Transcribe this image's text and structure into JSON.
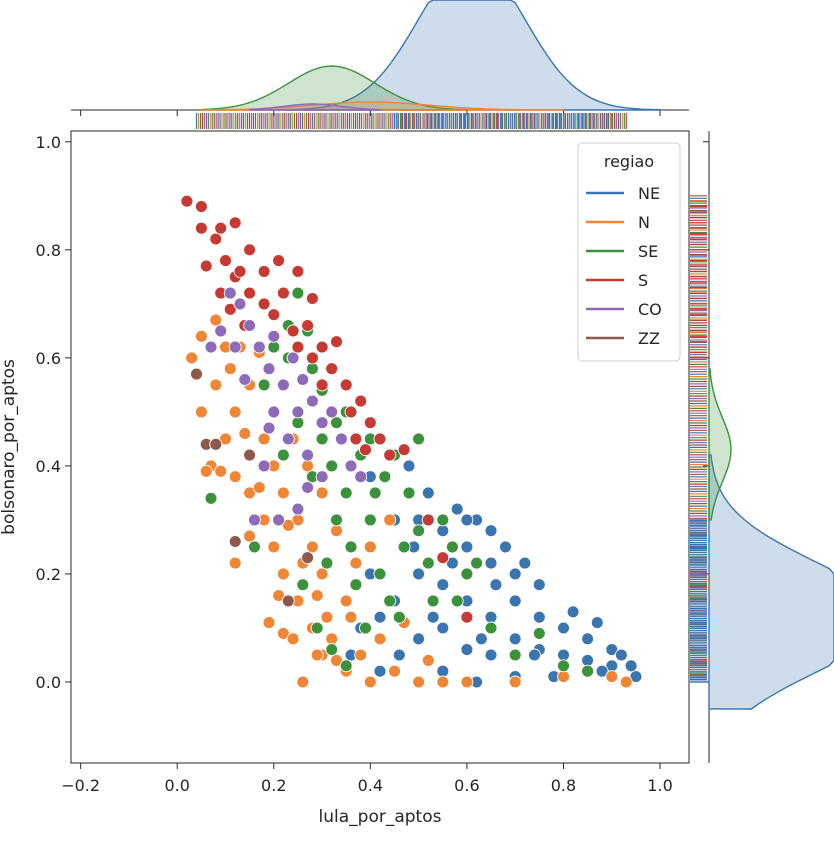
{
  "chart_data": {
    "type": "scatter",
    "xlabel": "lula_por_aptos",
    "ylabel": "bolsonaro_por_aptos",
    "xlim": [
      -0.22,
      1.06
    ],
    "ylim": [
      -0.15,
      1.02
    ],
    "xticks": [
      -0.2,
      0.0,
      0.2,
      0.4,
      0.6,
      0.8,
      1.0
    ],
    "xtick_labels": [
      "−0.2",
      "0.0",
      "0.2",
      "0.4",
      "0.6",
      "0.8",
      "1.0"
    ],
    "yticks": [
      0.0,
      0.2,
      0.4,
      0.6,
      0.8,
      1.0
    ],
    "ytick_labels": [
      "0.0",
      "0.2",
      "0.4",
      "0.6",
      "0.8",
      "1.0"
    ],
    "grid": false,
    "legend": {
      "title": "regiao",
      "position": "top-right"
    },
    "marginals": {
      "top": "kde + rug of x",
      "right": "kde + rug of y"
    },
    "series": [
      {
        "name": "NE",
        "color": "#3b75af",
        "points": [
          [
            0.5,
            0.08
          ],
          [
            0.55,
            0.1
          ],
          [
            0.6,
            0.06
          ],
          [
            0.65,
            0.05
          ],
          [
            0.7,
            0.08
          ],
          [
            0.75,
            0.06
          ],
          [
            0.8,
            0.05
          ],
          [
            0.85,
            0.04
          ],
          [
            0.9,
            0.03
          ],
          [
            0.95,
            0.01
          ],
          [
            0.45,
            0.15
          ],
          [
            0.5,
            0.2
          ],
          [
            0.55,
            0.18
          ],
          [
            0.6,
            0.15
          ],
          [
            0.65,
            0.12
          ],
          [
            0.7,
            0.15
          ],
          [
            0.75,
            0.12
          ],
          [
            0.8,
            0.1
          ],
          [
            0.85,
            0.08
          ],
          [
            0.9,
            0.06
          ],
          [
            0.45,
            0.3
          ],
          [
            0.5,
            0.3
          ],
          [
            0.55,
            0.28
          ],
          [
            0.6,
            0.25
          ],
          [
            0.65,
            0.22
          ],
          [
            0.7,
            0.2
          ],
          [
            0.75,
            0.18
          ],
          [
            0.48,
            0.4
          ],
          [
            0.52,
            0.35
          ],
          [
            0.58,
            0.32
          ],
          [
            0.62,
            0.3
          ],
          [
            0.68,
            0.25
          ],
          [
            0.72,
            0.22
          ],
          [
            0.4,
            0.38
          ],
          [
            0.42,
            0.02
          ],
          [
            0.5,
            0.0
          ],
          [
            0.55,
            0.02
          ],
          [
            0.62,
            0.0
          ],
          [
            0.7,
            0.01
          ],
          [
            0.78,
            0.01
          ],
          [
            0.88,
            0.02
          ],
          [
            0.92,
            0.05
          ],
          [
            0.6,
            0.3
          ],
          [
            0.65,
            0.28
          ],
          [
            0.38,
            0.1
          ],
          [
            0.42,
            0.12
          ],
          [
            0.46,
            0.05
          ],
          [
            0.66,
            0.18
          ],
          [
            0.74,
            0.05
          ],
          [
            0.82,
            0.13
          ],
          [
            0.57,
            0.22
          ],
          [
            0.49,
            0.25
          ],
          [
            0.53,
            0.12
          ],
          [
            0.63,
            0.08
          ],
          [
            0.87,
            0.11
          ],
          [
            0.94,
            0.03
          ],
          [
            0.4,
            0.2
          ],
          [
            0.36,
            0.05
          ]
        ]
      },
      {
        "name": "N",
        "color": "#ef8636",
        "points": [
          [
            0.03,
            0.6
          ],
          [
            0.05,
            0.5
          ],
          [
            0.07,
            0.4
          ],
          [
            0.08,
            0.55
          ],
          [
            0.1,
            0.45
          ],
          [
            0.1,
            0.62
          ],
          [
            0.12,
            0.38
          ],
          [
            0.12,
            0.5
          ],
          [
            0.15,
            0.35
          ],
          [
            0.15,
            0.55
          ],
          [
            0.18,
            0.3
          ],
          [
            0.18,
            0.45
          ],
          [
            0.2,
            0.25
          ],
          [
            0.2,
            0.4
          ],
          [
            0.22,
            0.2
          ],
          [
            0.22,
            0.35
          ],
          [
            0.25,
            0.15
          ],
          [
            0.25,
            0.3
          ],
          [
            0.28,
            0.1
          ],
          [
            0.28,
            0.25
          ],
          [
            0.3,
            0.05
          ],
          [
            0.3,
            0.2
          ],
          [
            0.32,
            0.08
          ],
          [
            0.35,
            0.15
          ],
          [
            0.35,
            0.02
          ],
          [
            0.38,
            0.05
          ],
          [
            0.4,
            0.0
          ],
          [
            0.42,
            0.08
          ],
          [
            0.45,
            0.02
          ],
          [
            0.5,
            0.0
          ],
          [
            0.55,
            0.0
          ],
          [
            0.6,
            0.0
          ],
          [
            0.7,
            0.0
          ],
          [
            0.8,
            0.01
          ],
          [
            0.9,
            0.01
          ],
          [
            0.93,
            0.0
          ],
          [
            0.06,
            0.39
          ],
          [
            0.09,
            0.39
          ],
          [
            0.12,
            0.22
          ],
          [
            0.15,
            0.27
          ],
          [
            0.19,
            0.11
          ],
          [
            0.22,
            0.09
          ],
          [
            0.26,
            0.0
          ],
          [
            0.24,
            0.08
          ],
          [
            0.21,
            0.16
          ],
          [
            0.13,
            0.62
          ],
          [
            0.17,
            0.61
          ],
          [
            0.3,
            0.35
          ],
          [
            0.27,
            0.4
          ],
          [
            0.24,
            0.45
          ],
          [
            0.33,
            0.28
          ],
          [
            0.37,
            0.22
          ],
          [
            0.4,
            0.25
          ],
          [
            0.44,
            0.3
          ],
          [
            0.36,
            0.12
          ],
          [
            0.31,
            0.12
          ],
          [
            0.29,
            0.16
          ],
          [
            0.05,
            0.64
          ],
          [
            0.08,
            0.67
          ],
          [
            0.11,
            0.58
          ],
          [
            0.14,
            0.46
          ],
          [
            0.17,
            0.36
          ],
          [
            0.2,
            0.5
          ],
          [
            0.23,
            0.29
          ],
          [
            0.26,
            0.22
          ],
          [
            0.29,
            0.05
          ],
          [
            0.33,
            0.04
          ],
          [
            0.47,
            0.11
          ],
          [
            0.52,
            0.04
          ]
        ]
      },
      {
        "name": "SE",
        "color": "#3b923b",
        "points": [
          [
            0.07,
            0.34
          ],
          [
            0.16,
            0.25
          ],
          [
            0.22,
            0.42
          ],
          [
            0.25,
            0.48
          ],
          [
            0.28,
            0.38
          ],
          [
            0.3,
            0.45
          ],
          [
            0.32,
            0.4
          ],
          [
            0.33,
            0.3
          ],
          [
            0.35,
            0.35
          ],
          [
            0.36,
            0.25
          ],
          [
            0.38,
            0.42
          ],
          [
            0.4,
            0.3
          ],
          [
            0.4,
            0.45
          ],
          [
            0.42,
            0.2
          ],
          [
            0.45,
            0.42
          ],
          [
            0.46,
            0.12
          ],
          [
            0.48,
            0.35
          ],
          [
            0.5,
            0.28
          ],
          [
            0.52,
            0.22
          ],
          [
            0.55,
            0.3
          ],
          [
            0.58,
            0.15
          ],
          [
            0.62,
            0.22
          ],
          [
            0.65,
            0.1
          ],
          [
            0.7,
            0.05
          ],
          [
            0.75,
            0.09
          ],
          [
            0.8,
            0.03
          ],
          [
            0.85,
            0.02
          ],
          [
            0.28,
            0.58
          ],
          [
            0.3,
            0.54
          ],
          [
            0.27,
            0.65
          ],
          [
            0.35,
            0.5
          ],
          [
            0.23,
            0.6
          ],
          [
            0.2,
            0.62
          ],
          [
            0.18,
            0.55
          ],
          [
            0.26,
            0.18
          ],
          [
            0.29,
            0.1
          ],
          [
            0.32,
            0.06
          ],
          [
            0.35,
            0.03
          ],
          [
            0.23,
            0.66
          ],
          [
            0.37,
            0.18
          ],
          [
            0.47,
            0.25
          ],
          [
            0.5,
            0.45
          ],
          [
            0.53,
            0.15
          ],
          [
            0.43,
            0.38
          ],
          [
            0.25,
            0.72
          ],
          [
            0.31,
            0.22
          ],
          [
            0.33,
            0.48
          ],
          [
            0.39,
            0.1
          ],
          [
            0.44,
            0.15
          ],
          [
            0.41,
            0.35
          ],
          [
            0.57,
            0.25
          ],
          [
            0.6,
            0.2
          ]
        ]
      },
      {
        "name": "S",
        "color": "#c53a32",
        "points": [
          [
            0.02,
            0.89
          ],
          [
            0.05,
            0.88
          ],
          [
            0.08,
            0.82
          ],
          [
            0.1,
            0.78
          ],
          [
            0.12,
            0.85
          ],
          [
            0.12,
            0.75
          ],
          [
            0.15,
            0.72
          ],
          [
            0.15,
            0.8
          ],
          [
            0.18,
            0.7
          ],
          [
            0.18,
            0.76
          ],
          [
            0.2,
            0.68
          ],
          [
            0.22,
            0.72
          ],
          [
            0.24,
            0.65
          ],
          [
            0.25,
            0.62
          ],
          [
            0.27,
            0.66
          ],
          [
            0.28,
            0.6
          ],
          [
            0.3,
            0.62
          ],
          [
            0.32,
            0.58
          ],
          [
            0.35,
            0.55
          ],
          [
            0.36,
            0.5
          ],
          [
            0.38,
            0.52
          ],
          [
            0.4,
            0.48
          ],
          [
            0.42,
            0.45
          ],
          [
            0.44,
            0.42
          ],
          [
            0.47,
            0.43
          ],
          [
            0.05,
            0.84
          ],
          [
            0.06,
            0.77
          ],
          [
            0.09,
            0.72
          ],
          [
            0.11,
            0.69
          ],
          [
            0.14,
            0.66
          ],
          [
            0.17,
            0.62
          ],
          [
            0.21,
            0.78
          ],
          [
            0.25,
            0.76
          ],
          [
            0.28,
            0.71
          ],
          [
            0.26,
            0.56
          ],
          [
            0.33,
            0.63
          ],
          [
            0.3,
            0.55
          ],
          [
            0.37,
            0.45
          ],
          [
            0.39,
            0.43
          ],
          [
            0.52,
            0.3
          ],
          [
            0.55,
            0.23
          ],
          [
            0.6,
            0.12
          ],
          [
            0.09,
            0.84
          ],
          [
            0.13,
            0.76
          ]
        ]
      },
      {
        "name": "CO",
        "color": "#8d6bb8",
        "points": [
          [
            0.09,
            0.65
          ],
          [
            0.12,
            0.62
          ],
          [
            0.13,
            0.7
          ],
          [
            0.15,
            0.66
          ],
          [
            0.17,
            0.62
          ],
          [
            0.19,
            0.58
          ],
          [
            0.2,
            0.64
          ],
          [
            0.22,
            0.55
          ],
          [
            0.24,
            0.6
          ],
          [
            0.25,
            0.5
          ],
          [
            0.26,
            0.56
          ],
          [
            0.28,
            0.52
          ],
          [
            0.3,
            0.48
          ],
          [
            0.32,
            0.5
          ],
          [
            0.34,
            0.45
          ],
          [
            0.36,
            0.4
          ],
          [
            0.38,
            0.38
          ],
          [
            0.2,
            0.5
          ],
          [
            0.23,
            0.45
          ],
          [
            0.27,
            0.42
          ],
          [
            0.3,
            0.38
          ],
          [
            0.18,
            0.4
          ],
          [
            0.16,
            0.3
          ],
          [
            0.21,
            0.3
          ],
          [
            0.25,
            0.32
          ],
          [
            0.07,
            0.62
          ],
          [
            0.11,
            0.72
          ],
          [
            0.14,
            0.56
          ],
          [
            0.19,
            0.47
          ],
          [
            0.27,
            0.36
          ]
        ]
      },
      {
        "name": "ZZ",
        "color": "#8b5a4c",
        "points": [
          [
            0.04,
            0.57
          ],
          [
            0.06,
            0.44
          ],
          [
            0.12,
            0.26
          ],
          [
            0.27,
            0.23
          ],
          [
            0.23,
            0.15
          ],
          [
            0.08,
            0.44
          ],
          [
            0.15,
            0.42
          ]
        ]
      }
    ]
  }
}
